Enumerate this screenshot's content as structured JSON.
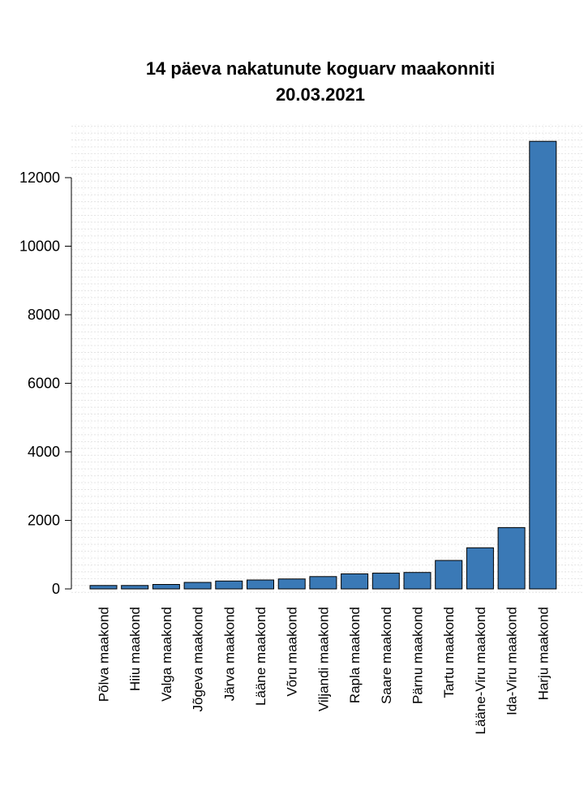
{
  "title": "14 päeva nakatunute koguarv maakonniti",
  "subtitle": "20.03.2021",
  "chart_data": {
    "type": "bar",
    "title": "14 päeva nakatunute koguarv maakonniti",
    "subtitle": "20.03.2021",
    "xlabel": "",
    "ylabel": "",
    "categories": [
      "Põlva maakond",
      "Hiiu maakond",
      "Valga maakond",
      "Jõgeva maakond",
      "Järva maakond",
      "Lääne maakond",
      "Võru maakond",
      "Viljandi maakond",
      "Rapla maakond",
      "Saare maakond",
      "Pärnu maakond",
      "Tartu maakond",
      "Lääne-Viru maakond",
      "Ida-Viru maakond",
      "Harju maakond"
    ],
    "values": [
      100,
      100,
      130,
      190,
      230,
      260,
      290,
      360,
      440,
      460,
      480,
      830,
      1200,
      1790,
      13060
    ],
    "ylim": [
      0,
      13500
    ],
    "yticks": [
      0,
      2000,
      4000,
      6000,
      8000,
      10000,
      12000
    ],
    "grid": true,
    "legend": "none",
    "bar_color": "#3a79b6"
  }
}
